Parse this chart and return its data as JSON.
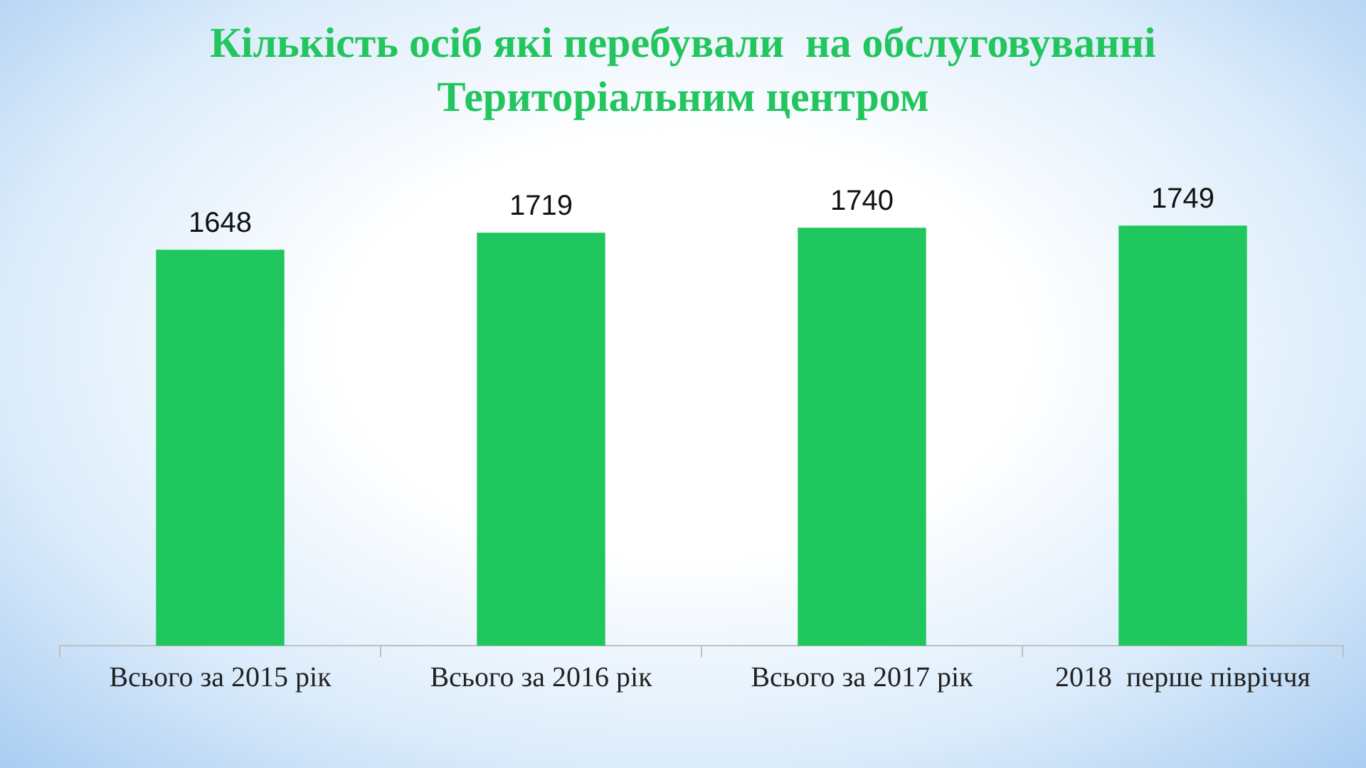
{
  "chart_data": {
    "type": "bar",
    "title": "Кількість осіб які перебували  на обслуговуванні Територіальним центром",
    "categories": [
      "Всього за 2015 рік",
      "Всього за 2016 рік",
      "Всього за 2017 рік",
      "2018  перше півріччя"
    ],
    "values": [
      1648,
      1719,
      1740,
      1749
    ],
    "color": "#1fc75e",
    "data_labels": true,
    "grid": false,
    "legend": false
  }
}
